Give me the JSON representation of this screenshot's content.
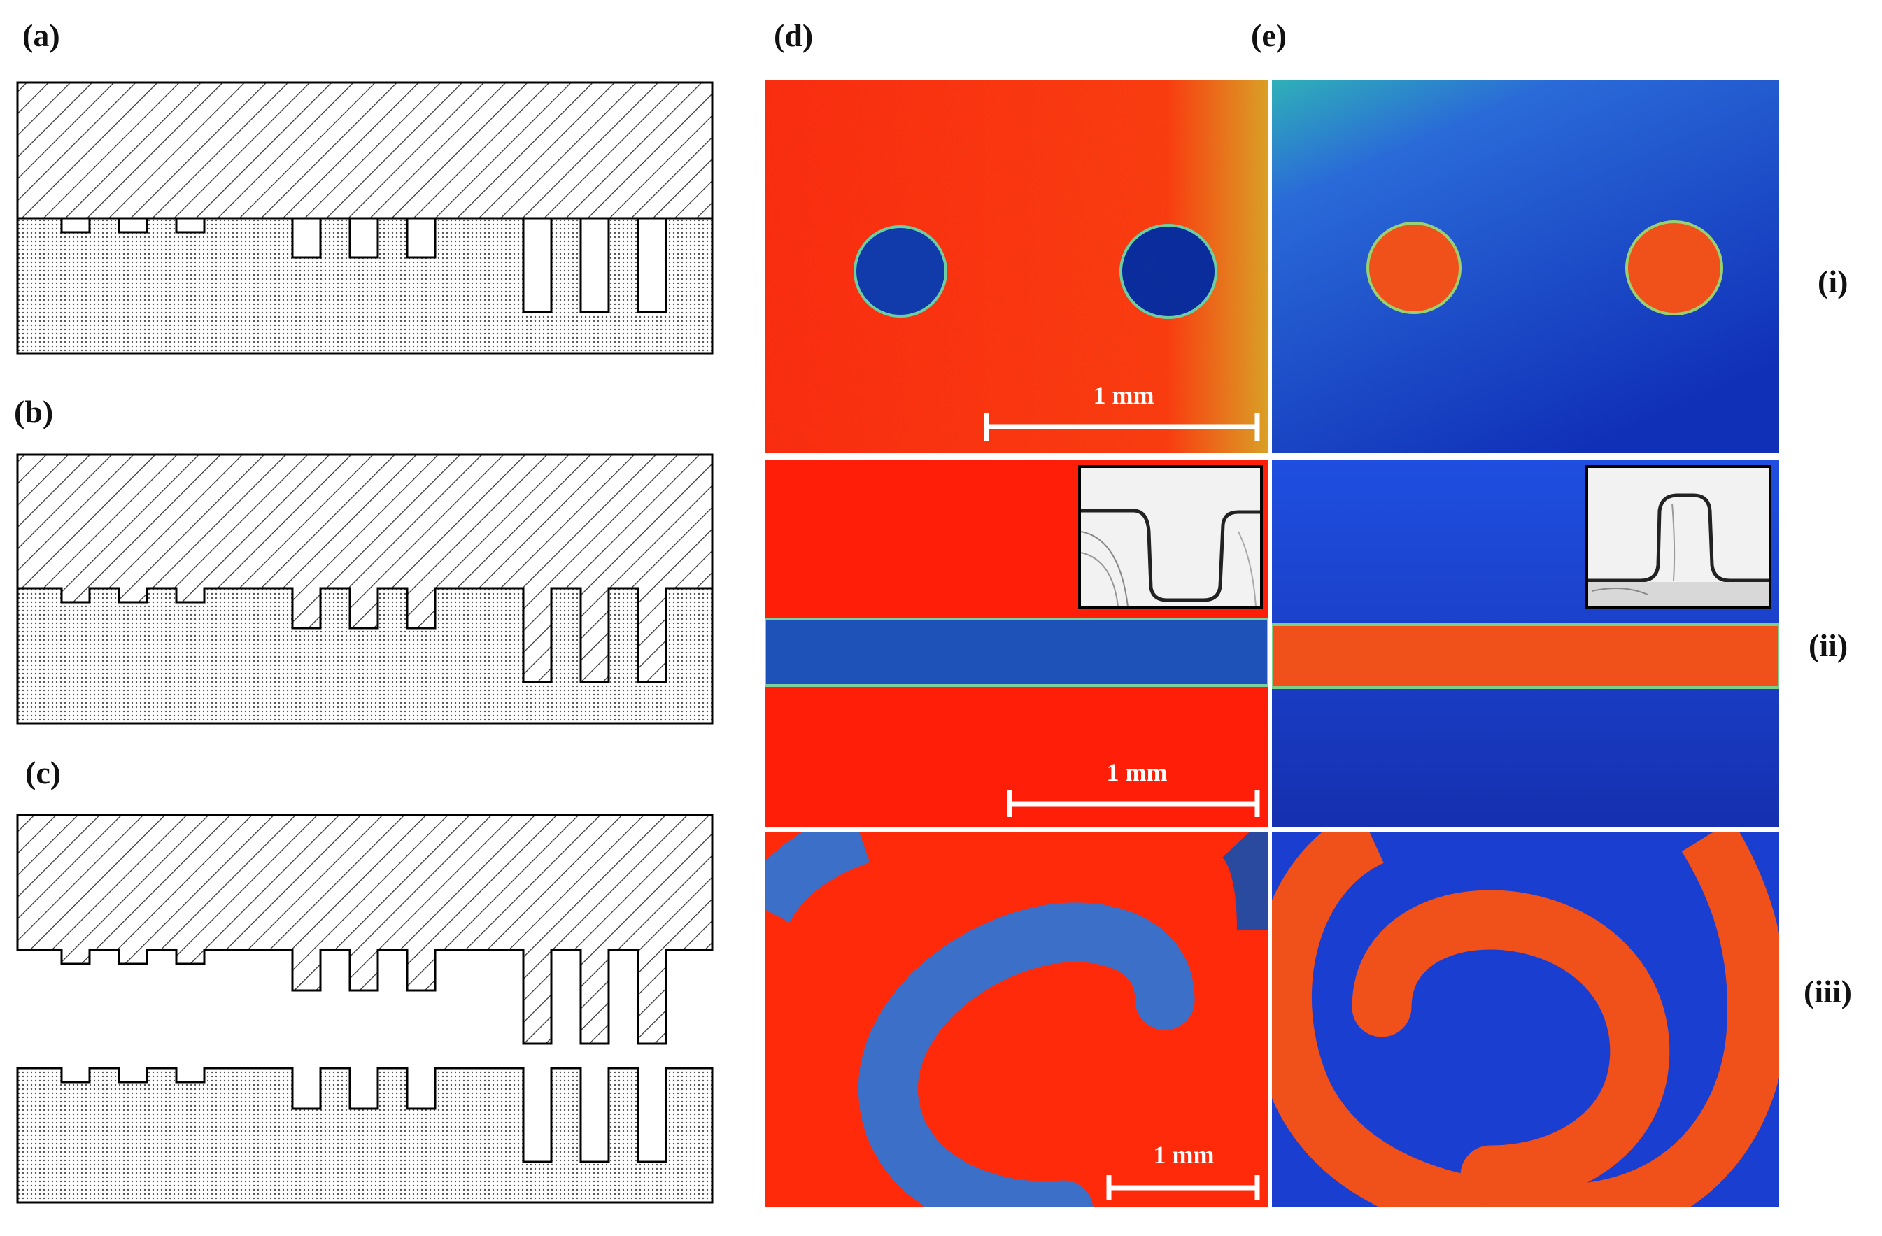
{
  "panels": {
    "a": "(a)",
    "b": "(b)",
    "c": "(c)",
    "d": "(d)",
    "e": "(e)"
  },
  "rows": {
    "i": "(i)",
    "ii": "(ii)",
    "iii": "(iii)"
  },
  "scale_bars": {
    "d_i": "1 mm",
    "d_ii": "1 mm",
    "d_iii": "1 mm"
  },
  "colors": {
    "red": "#ff2a0a",
    "blue": "#1a3fd0",
    "teal": "#2f6fcf",
    "outline": "#000000"
  }
}
